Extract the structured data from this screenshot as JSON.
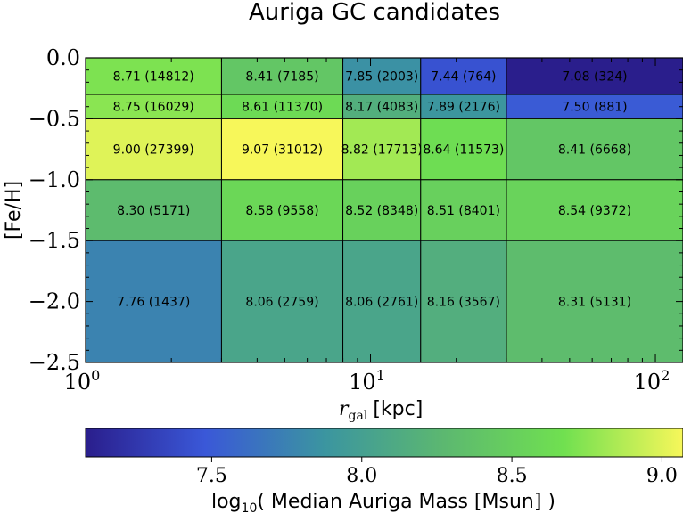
{
  "chart_data": {
    "type": "heatmap",
    "title": "Auriga GC candidates",
    "xlabel_main": "r",
    "xlabel_sub": "gal",
    "xlabel_unit": "[kpc]",
    "ylabel": "[Fe/H]",
    "x_scale": "log",
    "xlim": [
      1,
      125
    ],
    "ylim": [
      -2.5,
      0.0
    ],
    "x_edges": [
      1,
      3,
      8,
      15,
      30,
      125
    ],
    "y_edges": [
      0.0,
      -0.3,
      -0.5,
      -1.0,
      -1.5,
      -2.5
    ],
    "y_ticks": [
      "0.0",
      "−0.5",
      "−1.0",
      "−1.5",
      "−2.0",
      "−2.5"
    ],
    "y_tick_values": [
      0.0,
      -0.5,
      -1.0,
      -1.5,
      -2.0,
      -2.5
    ],
    "x_ticks": [
      {
        "value": 1,
        "base": "10",
        "exp": "0"
      },
      {
        "value": 10,
        "base": "10",
        "exp": "1"
      },
      {
        "value": 100,
        "base": "10",
        "exp": "2"
      }
    ],
    "cells": [
      [
        {
          "value": 8.71,
          "label": "8.71 (14812)"
        },
        {
          "value": 8.41,
          "label": "8.41 (7185)"
        },
        {
          "value": 7.85,
          "label": "7.85 (2003)"
        },
        {
          "value": 7.44,
          "label": "7.44 (764)"
        },
        {
          "value": 7.08,
          "label": "7.08 (324)"
        }
      ],
      [
        {
          "value": 8.75,
          "label": "8.75 (16029)"
        },
        {
          "value": 8.61,
          "label": "8.61 (11370)"
        },
        {
          "value": 8.17,
          "label": "8.17 (4083)"
        },
        {
          "value": 7.89,
          "label": "7.89 (2176)"
        },
        {
          "value": 7.5,
          "label": "7.50 (881)"
        }
      ],
      [
        {
          "value": 9.0,
          "label": "9.00 (27399)"
        },
        {
          "value": 9.07,
          "label": "9.07 (31012)"
        },
        {
          "value": 8.82,
          "label": "8.82 (17713)"
        },
        {
          "value": 8.64,
          "label": "8.64 (11573)"
        },
        {
          "value": 8.41,
          "label": "8.41 (6668)"
        }
      ],
      [
        {
          "value": 8.3,
          "label": "8.30 (5171)"
        },
        {
          "value": 8.58,
          "label": "8.58 (9558)"
        },
        {
          "value": 8.52,
          "label": "8.52 (8348)"
        },
        {
          "value": 8.51,
          "label": "8.51 (8401)"
        },
        {
          "value": 8.54,
          "label": "8.54 (9372)"
        }
      ],
      [
        {
          "value": 7.76,
          "label": "7.76 (1437)"
        },
        {
          "value": 8.06,
          "label": "8.06 (2759)"
        },
        {
          "value": 8.06,
          "label": "8.06 (2761)"
        },
        {
          "value": 8.16,
          "label": "8.16 (3567)"
        },
        {
          "value": 8.31,
          "label": "8.31 (5131)"
        }
      ]
    ],
    "colorbar": {
      "label_prefix": "log",
      "label_sub": "10",
      "label_rest": "( Median Auriga Mass [Msun] )",
      "vmin": 7.08,
      "vmax": 9.07,
      "ticks": [
        "7.5",
        "8.0",
        "8.5",
        "9.0"
      ],
      "tick_values": [
        7.5,
        8.0,
        8.5,
        9.0
      ],
      "colormap": [
        "#2a1e8c",
        "#3a58d8",
        "#3b95a0",
        "#5cb870",
        "#70e050",
        "#f7f75a"
      ]
    }
  }
}
